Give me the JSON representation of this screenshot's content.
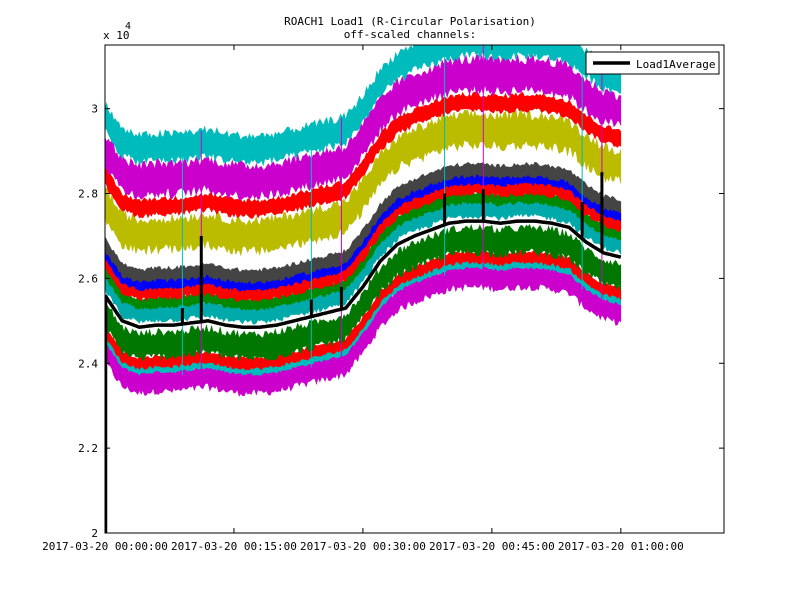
{
  "chart_data": {
    "type": "line",
    "title": "ROACH1 Load1 (R-Circular Polarisation)",
    "subtitle": "off-scaled channels:",
    "xlabel": "",
    "ylabel": "",
    "y_multiplier_label": "x 10",
    "y_multiplier_exponent": "4",
    "xlim_minutes": [
      0,
      72
    ],
    "ylim": [
      2.0,
      3.15
    ],
    "y_ticks": [
      2,
      2.2,
      2.4,
      2.6,
      2.8,
      3
    ],
    "y_tick_labels": [
      "2",
      "2.2",
      "2.4",
      "2.6",
      "2.8",
      "3"
    ],
    "x_ticks_minutes": [
      0,
      15,
      30,
      45,
      60
    ],
    "x_tick_labels": [
      "2017-03-20 00:00:00",
      "2017-03-20 00:15:00",
      "2017-03-20 00:30:00",
      "2017-03-20 00:45:00",
      "2017-03-20 01:00:00"
    ],
    "grid": false,
    "legend": {
      "entries": [
        "Load1Average"
      ],
      "position": "top-right"
    },
    "data_end_minutes": 60,
    "average_series": {
      "name": "Load1Average",
      "color": "#000000",
      "x": [
        0,
        2,
        4,
        6,
        8,
        10,
        12,
        14,
        16,
        18,
        20,
        22,
        24,
        26,
        28,
        30,
        32,
        34,
        36,
        38,
        40,
        42,
        44,
        46,
        48,
        50,
        52,
        54,
        56,
        58,
        60
      ],
      "values": [
        2.56,
        2.5,
        2.485,
        2.49,
        2.49,
        2.495,
        2.5,
        2.49,
        2.485,
        2.485,
        2.49,
        2.5,
        2.51,
        2.52,
        2.53,
        2.58,
        2.64,
        2.68,
        2.7,
        2.715,
        2.73,
        2.735,
        2.735,
        2.73,
        2.735,
        2.735,
        2.73,
        2.72,
        2.685,
        2.66,
        2.65
      ]
    },
    "spikes": [
      {
        "x": 9,
        "top": 2.53
      },
      {
        "x": 11.2,
        "top": 2.7
      },
      {
        "x": 24,
        "top": 2.55
      },
      {
        "x": 27.5,
        "top": 2.58
      },
      {
        "x": 39.5,
        "top": 2.8
      },
      {
        "x": 44,
        "top": 2.81
      },
      {
        "x": 55.5,
        "top": 2.78
      },
      {
        "x": 57.8,
        "top": 2.85
      }
    ],
    "start_drop": {
      "x": 0,
      "bottom": 2.0
    },
    "channel_series": [
      {
        "name": "ch-magenta-low",
        "color": "#cc00cc",
        "offset": -0.13,
        "half_width": 0.025
      },
      {
        "name": "ch-cyan-low",
        "color": "#00bbbb",
        "offset": -0.1,
        "half_width": 0.01
      },
      {
        "name": "ch-red-low",
        "color": "#ff0000",
        "offset": -0.085,
        "half_width": 0.012
      },
      {
        "name": "ch-green-low",
        "color": "#007700",
        "offset": -0.045,
        "half_width": 0.028
      },
      {
        "name": "ch-teal",
        "color": "#00aaaa",
        "offset": 0.03,
        "half_width": 0.018
      },
      {
        "name": "ch-green-mid",
        "color": "#008800",
        "offset": 0.055,
        "half_width": 0.012
      },
      {
        "name": "ch-red-mid",
        "color": "#ff0000",
        "offset": 0.08,
        "half_width": 0.016
      },
      {
        "name": "ch-blue",
        "color": "#0000ff",
        "offset": 0.1,
        "half_width": 0.012
      },
      {
        "name": "ch-grey",
        "color": "#444444",
        "offset": 0.12,
        "half_width": 0.014
      },
      {
        "name": "ch-olive",
        "color": "#bbbb00",
        "offset": 0.215,
        "half_width": 0.035
      },
      {
        "name": "ch-red-high",
        "color": "#ff0000",
        "offset": 0.28,
        "half_width": 0.018
      },
      {
        "name": "ch-magenta-high",
        "color": "#cc00cc",
        "offset": 0.345,
        "half_width": 0.035
      },
      {
        "name": "ch-cyan-high",
        "color": "#00bbbb",
        "offset": 0.42,
        "half_width": 0.03
      }
    ]
  }
}
